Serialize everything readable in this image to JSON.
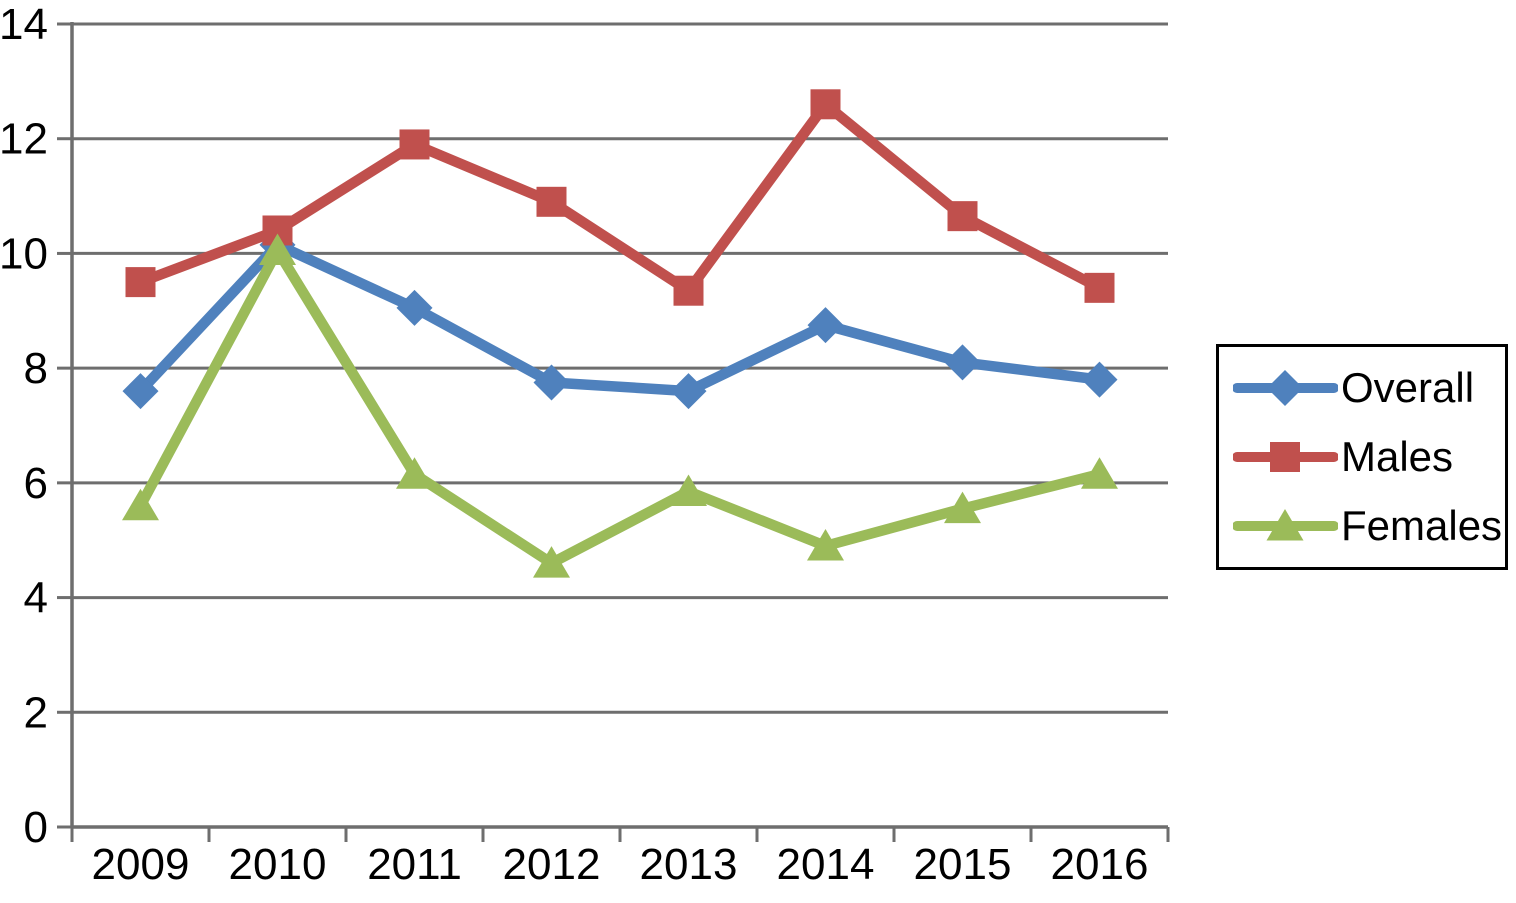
{
  "chart_data": {
    "type": "line",
    "title": "",
    "xlabel": "",
    "ylabel": "",
    "categories": [
      "2009",
      "2010",
      "2011",
      "2012",
      "2013",
      "2014",
      "2015",
      "2016"
    ],
    "series": [
      {
        "name": "Overall",
        "marker": "diamond",
        "color": "#4F81BD",
        "values": [
          7.6,
          10.15,
          9.05,
          7.75,
          7.6,
          8.75,
          8.1,
          7.8
        ]
      },
      {
        "name": "Males",
        "marker": "square",
        "color": "#C0504D",
        "values": [
          9.5,
          10.4,
          11.9,
          10.9,
          9.35,
          12.6,
          10.65,
          9.4
        ]
      },
      {
        "name": "Females",
        "marker": "triangle",
        "color": "#9BBB59",
        "values": [
          5.6,
          10.05,
          6.15,
          4.6,
          5.85,
          4.9,
          5.55,
          6.15
        ]
      }
    ],
    "ylim": [
      0,
      14
    ],
    "ytick_step": 2,
    "yticks": [
      "0",
      "2",
      "4",
      "6",
      "8",
      "10",
      "12",
      "14"
    ],
    "grid": true,
    "legend_position": "right",
    "colors": {
      "grid": "#6e6e6e",
      "axis": "#6e6e6e",
      "text": "#000000",
      "background": "#ffffff"
    }
  }
}
